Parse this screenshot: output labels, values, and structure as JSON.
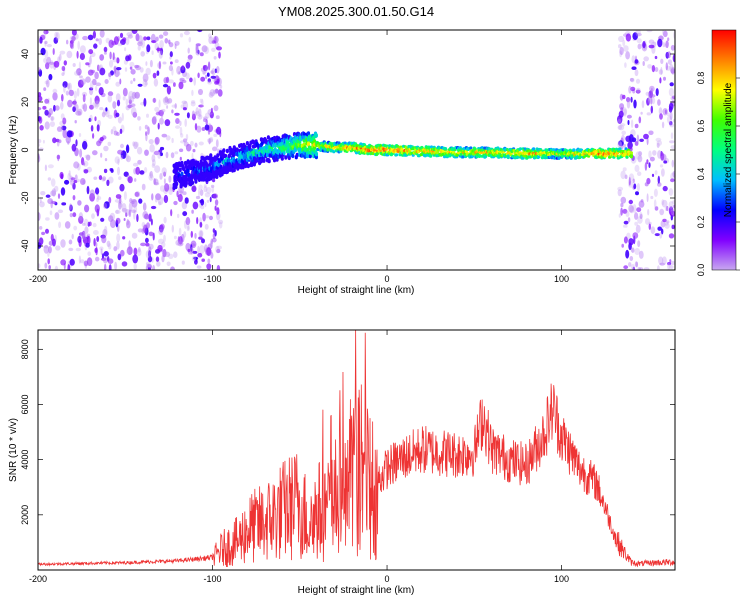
{
  "chart_data": [
    {
      "type": "heatmap",
      "title": "YM08.2025.300.01.50.G14",
      "xlabel": "Height of straight line (km)",
      "ylabel": "Frequency (Hz)",
      "xlim": [
        -200,
        165
      ],
      "ylim": [
        -50,
        50
      ],
      "xticks": [
        -200,
        -100,
        0,
        100
      ],
      "yticks": [
        -40,
        -20,
        0,
        20,
        40
      ],
      "colorbar": {
        "label": "Normalized spectral amplitude",
        "range": [
          0.0,
          1.0
        ],
        "ticks": [
          0.0,
          0.2,
          0.4,
          0.6,
          0.8
        ],
        "colors": [
          "#c8a8f0",
          "#8000ff",
          "#0000ff",
          "#00bfff",
          "#00ff80",
          "#40ff00",
          "#ffff00",
          "#ff8000",
          "#ff0000"
        ]
      },
      "signal_track": {
        "x": [
          -122,
          -110,
          -100,
          -90,
          -80,
          -70,
          -60,
          -50,
          -40,
          -30,
          -20,
          -10,
          0,
          20,
          40,
          60,
          80,
          100,
          120,
          140
        ],
        "frequency": [
          -11,
          -9,
          -7,
          -4,
          -2,
          0,
          1,
          2,
          2,
          1,
          1,
          0,
          0,
          -0.5,
          -1,
          -1,
          -1.5,
          -1.5,
          -1.5,
          -1.5
        ],
        "amplitude": [
          0.25,
          0.3,
          0.35,
          0.4,
          0.45,
          0.5,
          0.55,
          0.65,
          0.75,
          0.8,
          0.85,
          0.9,
          0.9,
          0.85,
          0.8,
          0.8,
          0.85,
          0.7,
          0.9,
          0.85
        ]
      },
      "noise_regions": [
        [
          -200,
          -95
        ],
        [
          133,
          165
        ]
      ]
    },
    {
      "type": "line",
      "xlabel": "Height of straight line (km)",
      "ylabel": "SNR (10 * v/v)",
      "xlim": [
        -200,
        165
      ],
      "ylim": [
        0,
        8700
      ],
      "xticks": [
        -200,
        -100,
        0,
        100
      ],
      "yticks": [
        2000,
        4000,
        6000,
        8000
      ],
      "series": [
        {
          "name": "SNR",
          "color": "#ee3333",
          "x": [
            -200,
            -150,
            -120,
            -100,
            -95,
            -85,
            -80,
            -70,
            -60,
            -50,
            -45,
            -40,
            -30,
            -25,
            -20,
            -15,
            -10,
            -5,
            0,
            10,
            20,
            30,
            40,
            50,
            55,
            60,
            70,
            80,
            90,
            95,
            100,
            110,
            120,
            125,
            130,
            135,
            140,
            145,
            155,
            165
          ],
          "y": [
            220,
            280,
            350,
            480,
            900,
            1300,
            1800,
            2100,
            2600,
            3000,
            2000,
            2600,
            2800,
            3300,
            3800,
            4500,
            3700,
            3400,
            3900,
            4300,
            4600,
            4500,
            4400,
            4500,
            5900,
            4600,
            4200,
            4000,
            5200,
            6200,
            5100,
            3900,
            3300,
            2400,
            1400,
            800,
            300,
            250,
            300,
            320
          ]
        }
      ]
    }
  ]
}
